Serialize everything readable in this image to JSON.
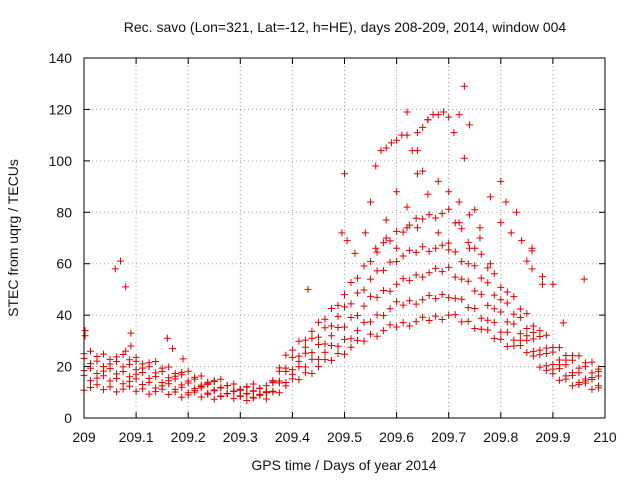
{
  "chart_data": {
    "type": "scatter",
    "title": "Rec. savo (Lon=321, Lat=-12, h=HE), days 208-209, 2014, window 004",
    "xlabel": "GPS time / Days of year 2014",
    "ylabel": "STEC from uqrg / TECUs",
    "xlim": [
      209,
      210
    ],
    "ylim": [
      0,
      140
    ],
    "x_ticks": [
      "209",
      "209.1",
      "209.2",
      "209.3",
      "209.4",
      "209.5",
      "209.6",
      "209.7",
      "209.8",
      "209.9",
      "210"
    ],
    "y_ticks": [
      "0",
      "20",
      "40",
      "60",
      "80",
      "100",
      "120",
      "140"
    ],
    "grid": true,
    "marker": "+",
    "point_color": "#e00000",
    "series": [
      {
        "name": "STEC",
        "points": [
          [
            209.002,
            34
          ],
          [
            209.002,
            32
          ],
          [
            209.06,
            58
          ],
          [
            209.07,
            61
          ],
          [
            209.08,
            51
          ],
          [
            209.09,
            33
          ],
          [
            209.09,
            28
          ],
          [
            209.16,
            31
          ],
          [
            209.17,
            27
          ],
          [
            209.19,
            23
          ],
          [
            209.08,
            26
          ],
          [
            209.1,
            22
          ],
          [
            209.43,
            50
          ],
          [
            209.5,
            95
          ],
          [
            209.495,
            72
          ],
          [
            209.505,
            69
          ],
          [
            209.52,
            64
          ],
          [
            209.56,
            98
          ],
          [
            209.57,
            104
          ],
          [
            209.58,
            105
          ],
          [
            209.59,
            107
          ],
          [
            209.6,
            108
          ],
          [
            209.61,
            110
          ],
          [
            209.62,
            110
          ],
          [
            209.63,
            104
          ],
          [
            209.64,
            111
          ],
          [
            209.65,
            113
          ],
          [
            209.66,
            116
          ],
          [
            209.67,
            118
          ],
          [
            209.68,
            118
          ],
          [
            209.69,
            119
          ],
          [
            209.7,
            117
          ],
          [
            209.71,
            111
          ],
          [
            209.72,
            118
          ],
          [
            209.74,
            114
          ],
          [
            209.73,
            129
          ],
          [
            209.62,
            119
          ],
          [
            209.66,
            116
          ],
          [
            209.64,
            104
          ],
          [
            209.65,
            96
          ],
          [
            209.73,
            101
          ],
          [
            209.75,
            81
          ],
          [
            209.78,
            86
          ],
          [
            209.8,
            92
          ],
          [
            209.81,
            84
          ],
          [
            209.83,
            80
          ],
          [
            209.85,
            61
          ],
          [
            209.86,
            65
          ],
          [
            209.88,
            55
          ],
          [
            209.9,
            52
          ],
          [
            209.92,
            37
          ],
          [
            209.96,
            54
          ],
          [
            209.55,
            84
          ],
          [
            209.58,
            77
          ],
          [
            209.6,
            88
          ],
          [
            209.62,
            82
          ],
          [
            209.64,
            95
          ],
          [
            209.66,
            87
          ],
          [
            209.68,
            92
          ],
          [
            209.7,
            88
          ],
          [
            209.72,
            84
          ],
          [
            209.74,
            79
          ],
          [
            209.76,
            74
          ],
          [
            209.54,
            72
          ],
          [
            209.56,
            66
          ],
          [
            209.58,
            70
          ],
          [
            209.6,
            66
          ],
          [
            209.64,
            74
          ],
          [
            209.68,
            72
          ],
          [
            209.72,
            76
          ],
          [
            209.76,
            70
          ],
          [
            209.8,
            76
          ],
          [
            209.82,
            72
          ],
          [
            209.84,
            69
          ],
          [
            209.86,
            66
          ],
          [
            209.62,
            74
          ],
          [
            209.7,
            68
          ],
          [
            209.74,
            66
          ],
          [
            209.78,
            60
          ],
          [
            209.86,
            58
          ],
          [
            209.88,
            52
          ]
        ],
        "bands": [
          {
            "x": [
              209.0,
              209.1,
              209.2,
              209.3,
              209.35,
              209.4,
              209.45,
              209.5,
              209.55,
              209.6,
              209.65,
              209.7,
              209.75,
              209.8,
              209.85,
              209.9,
              209.95,
              209.99
            ],
            "y": [
              12,
              11,
              9,
              8,
              8,
              14,
              20,
              26,
              32,
              36,
              38,
              40,
              36,
              30,
              26,
              16,
              13,
              11
            ]
          },
          {
            "x": [
              209.0,
              209.1,
              209.2,
              209.3,
              209.35,
              209.4,
              209.45,
              209.5,
              209.55,
              209.6,
              209.65,
              209.7,
              209.75,
              209.8,
              209.85,
              209.9,
              209.95,
              209.99
            ],
            "y": [
              16,
              14,
              11,
              9,
              9,
              17,
              24,
              30,
              38,
              44,
              46,
              48,
              42,
              34,
              29,
              19,
              15,
              13
            ]
          },
          {
            "x": [
              209.0,
              209.1,
              209.2,
              209.3,
              209.35,
              209.4,
              209.45,
              209.5,
              209.55,
              209.6,
              209.65,
              209.7,
              209.75,
              209.8,
              209.85,
              209.9,
              209.95,
              209.99
            ],
            "y": [
              19,
              17,
              13,
              10,
              10,
              20,
              28,
              36,
              46,
              52,
              56,
              58,
              50,
              40,
              32,
              22,
              17,
              15
            ]
          },
          {
            "x": [
              209.0,
              209.1,
              209.2,
              209.3,
              209.35,
              209.4,
              209.45,
              209.5,
              209.55,
              209.6,
              209.65,
              209.7,
              209.75,
              209.8,
              209.85,
              209.9,
              209.95,
              209.99
            ],
            "y": [
              22,
              20,
              15,
              11,
              11,
              23,
              32,
              42,
              54,
              62,
              66,
              66,
              58,
              46,
              36,
              25,
              20,
              18
            ]
          },
          {
            "x": [
              209.0,
              209.1,
              209.2,
              209.3,
              209.35,
              209.4,
              209.45,
              209.5,
              209.55,
              209.6,
              209.65,
              209.7,
              209.75,
              209.8,
              209.85,
              209.9,
              209.95,
              209.99
            ],
            "y": [
              25,
              23,
              17,
              12,
              12,
              27,
              36,
              48,
              62,
              72,
              78,
              80,
              66,
              52,
              40,
              28,
              23,
              20
            ]
          }
        ]
      }
    ]
  }
}
